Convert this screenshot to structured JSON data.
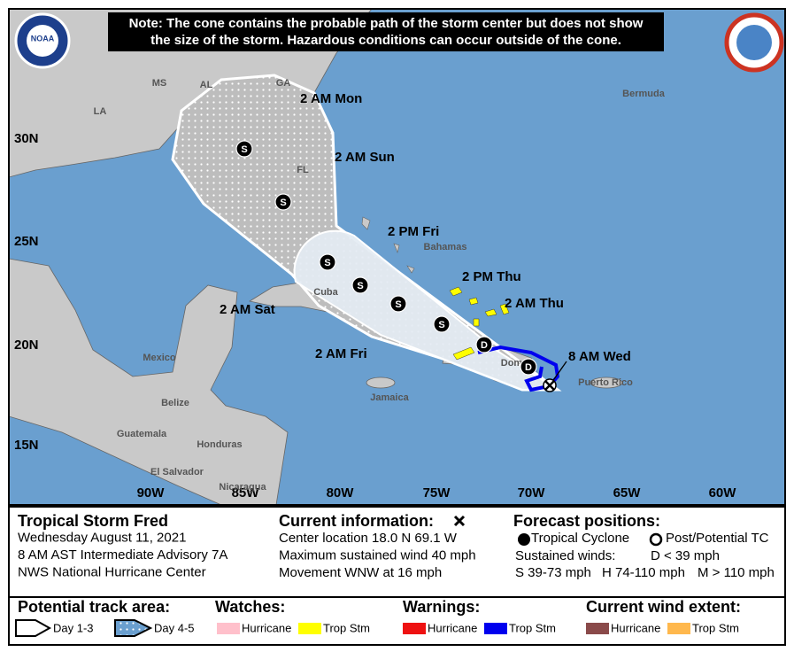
{
  "note": [
    "Note: The cone contains the probable path of the storm center but does not show",
    "the size of the storm. Hazardous conditions can occur outside of the cone."
  ],
  "logo": "NOAA",
  "map": {
    "latitudes": [
      "30N",
      "25N",
      "20N",
      "15N"
    ],
    "longitudes": [
      "90W",
      "85W",
      "80W",
      "75W",
      "70W",
      "65W",
      "60W"
    ],
    "places": [
      "MS",
      "AL",
      "GA",
      "LA",
      "FL",
      "Bermuda",
      "Bahamas",
      "Cuba",
      "Mexico",
      "Belize",
      "Guatemala",
      "Honduras",
      "El Salvador",
      "Nicaragua",
      "Jamaica",
      "Dom",
      "Puerto Rico"
    ],
    "current_position": "8 AM Wed",
    "forecast_points": [
      {
        "label": null,
        "marker": "D"
      },
      {
        "label": "2 AM Thu",
        "marker": "D"
      },
      {
        "label": "2 PM Thu",
        "marker": "S"
      },
      {
        "label": "2 AM Fri",
        "marker": "S"
      },
      {
        "label": "2 PM Fri",
        "marker": "S"
      },
      {
        "label": "2 AM Sat",
        "marker": "S"
      },
      {
        "label": "2 AM Sun",
        "marker": "S"
      },
      {
        "label": "2 AM Mon",
        "marker": "S"
      }
    ]
  },
  "info": {
    "storm": [
      "Tropical Storm Fred",
      "Wednesday August 11, 2021",
      "8 AM AST Intermediate Advisory 7A",
      "NWS National Hurricane Center"
    ],
    "current": {
      "title": "Current information:",
      "lines": [
        "Center location 18.0 N 69.1 W",
        "Maximum sustained wind 40 mph",
        "Movement WNW at 16 mph"
      ]
    },
    "forecast": {
      "title": "Forecast positions:",
      "tropical": "Tropical Cyclone",
      "post": "Post/Potential TC",
      "winds": "Sustained winds:",
      "d": "D < 39 mph",
      "s": "S 39-73 mph",
      "h": "H 74-110 mph",
      "m": "M > 110 mph"
    }
  },
  "legend": {
    "track": {
      "title": "Potential track area:",
      "day13": "Day 1-3",
      "day45": "Day 4-5"
    },
    "watches": {
      "title": "Watches:",
      "hurricane": "Hurricane",
      "trop": "Trop Stm"
    },
    "warnings": {
      "title": "Warnings:",
      "hurricane": "Hurricane",
      "trop": "Trop Stm"
    },
    "wind": {
      "title": "Current wind extent:",
      "hurricane": "Hurricane",
      "trop": "Trop Stm"
    }
  }
}
